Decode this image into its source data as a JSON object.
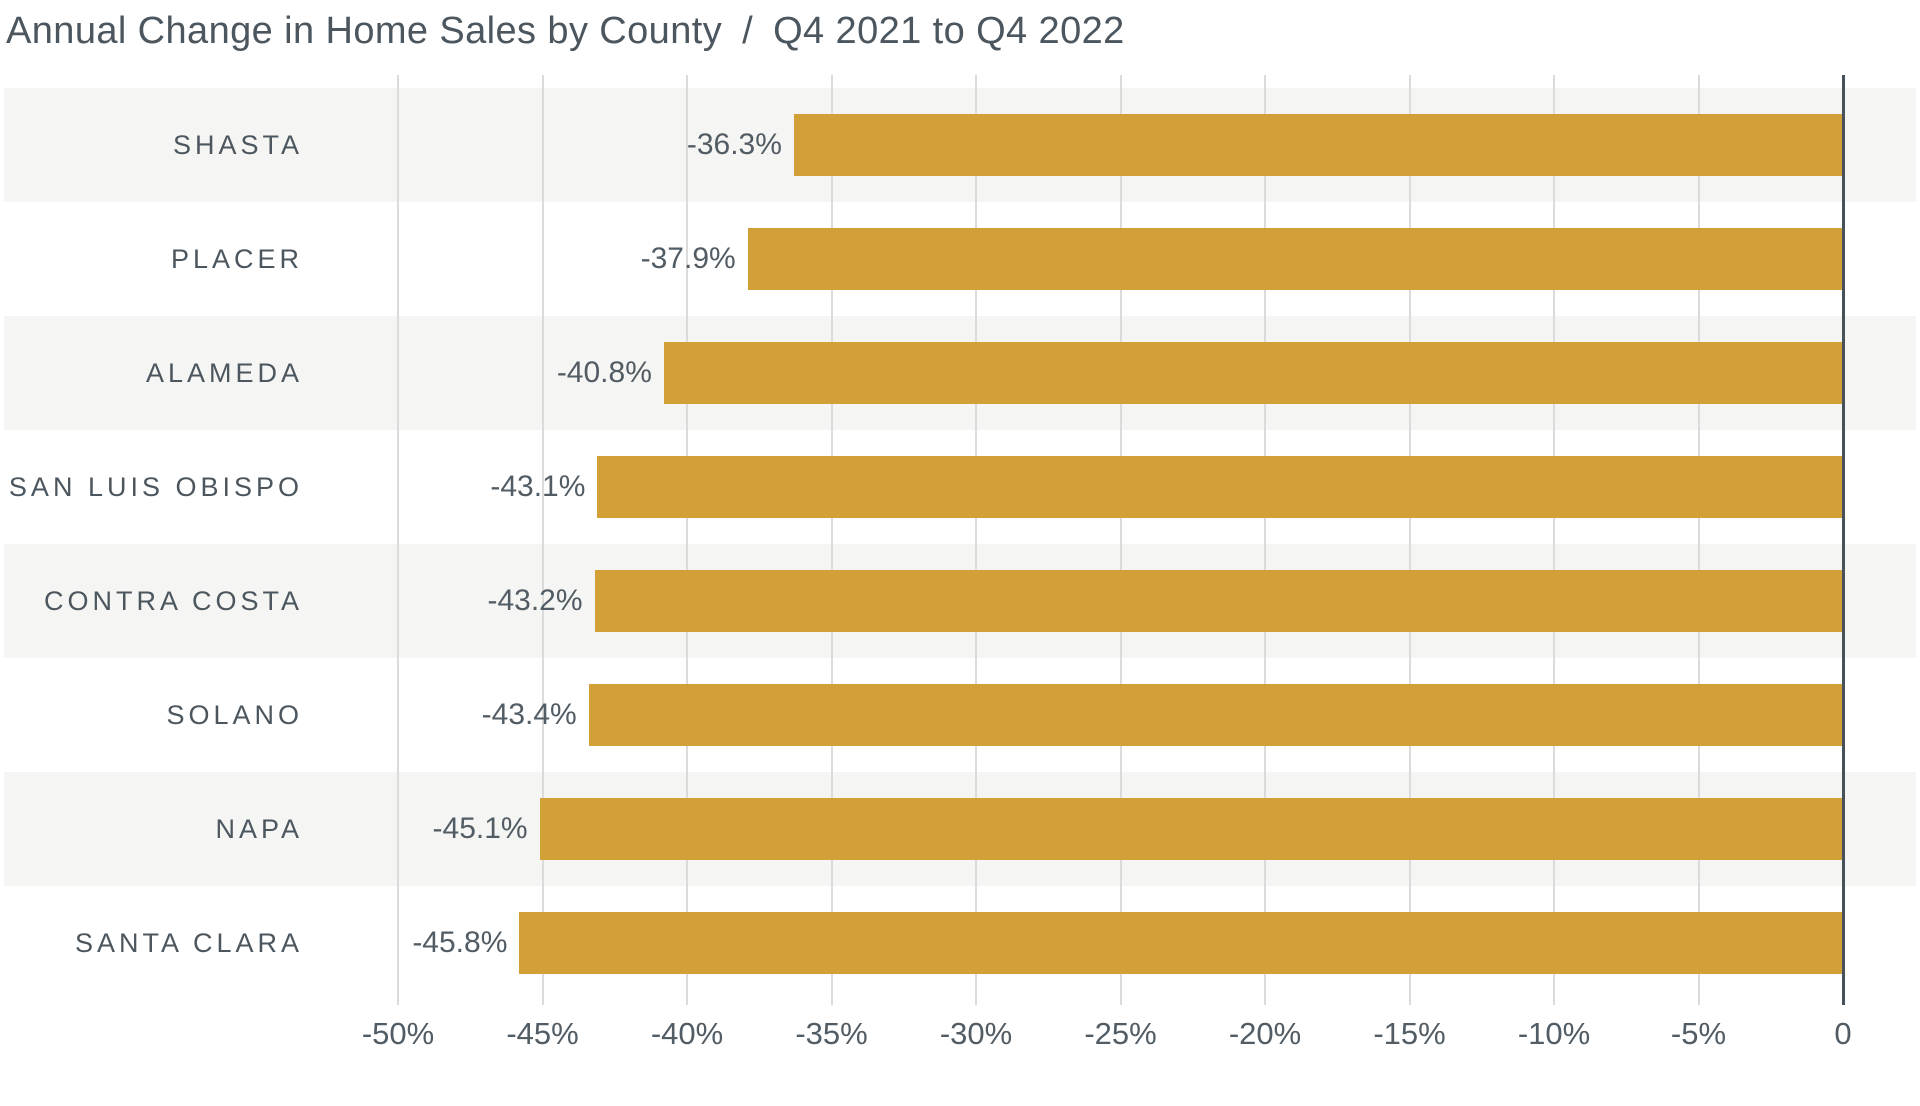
{
  "title": {
    "main": "Annual Change in Home Sales by County",
    "separator": "/",
    "period": "Q4 2021 to Q4 2022"
  },
  "chart_data": {
    "type": "bar",
    "orientation": "horizontal",
    "title": "Annual Change in Home Sales by County / Q4 2021 to Q4 2022",
    "categories": [
      "SHASTA",
      "PLACER",
      "ALAMEDA",
      "SAN LUIS OBISPO",
      "CONTRA COSTA",
      "SOLANO",
      "NAPA",
      "SANTA CLARA"
    ],
    "values": [
      -36.3,
      -37.9,
      -40.8,
      -43.1,
      -43.2,
      -43.4,
      -45.1,
      -45.8
    ],
    "value_labels": [
      "-36.3%",
      "-37.9%",
      "-40.8%",
      "-43.1%",
      "-43.2%",
      "-43.4%",
      "-45.1%",
      "-45.8%"
    ],
    "x_ticks": [
      -50,
      -45,
      -40,
      -35,
      -30,
      -25,
      -20,
      -15,
      -10,
      -5,
      0
    ],
    "x_tick_labels": [
      "-50%",
      "-45%",
      "-40%",
      "-35%",
      "-30%",
      "-25%",
      "-20%",
      "-15%",
      "-10%",
      "-5%",
      "0"
    ],
    "xlim": [
      -50,
      0
    ],
    "grid": true,
    "legend_position": "none",
    "colors": {
      "bar": "#d2a036",
      "stripe": "#f5f5f3",
      "gridline": "#dbdbdb",
      "zero_axis": "#47515a",
      "title_text": "#4c565e",
      "label_text": "#4c565e",
      "value_text": "#525c64"
    }
  }
}
